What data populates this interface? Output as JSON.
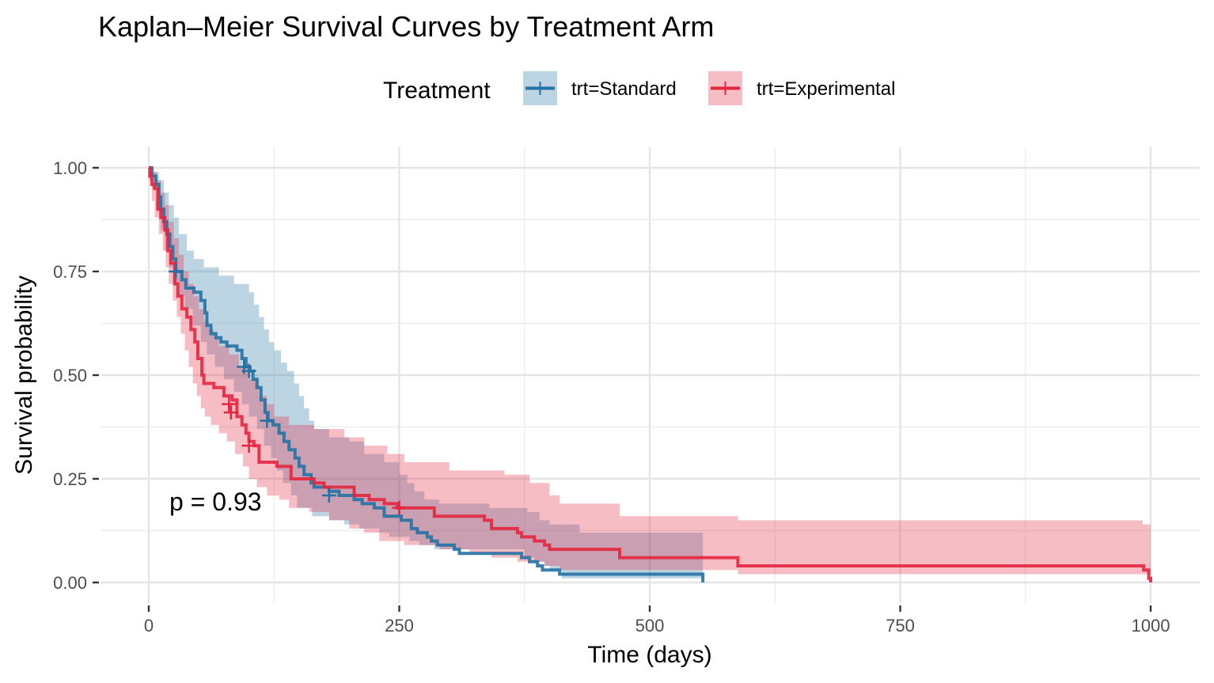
{
  "chart_data": {
    "type": "line",
    "subtype": "kaplan-meier-step",
    "title": "Kaplan–Meier Survival Curves by Treatment Arm",
    "xlabel": "Time (days)",
    "ylabel": "Survival probability",
    "xlim": [
      -20,
      1035
    ],
    "ylim": [
      -0.03,
      1.05
    ],
    "x_ticks": [
      0,
      250,
      500,
      750,
      1000
    ],
    "x_tick_labels": [
      "0",
      "250",
      "500",
      "750",
      "1000"
    ],
    "y_ticks": [
      0,
      0.25,
      0.5,
      0.75,
      1.0
    ],
    "y_tick_labels": [
      "0.00",
      "0.25",
      "0.50",
      "0.75",
      "1.00"
    ],
    "grid": true,
    "legend": {
      "title": "Treatment",
      "position": "top",
      "entries": [
        "trt=Standard",
        "trt=Experimental"
      ]
    },
    "annotation": "p = 0.93",
    "series": [
      {
        "name": "trt=Standard",
        "color": "#2471a3",
        "fill": "#2471a3",
        "steps": [
          [
            0,
            1.0
          ],
          [
            3,
            0.98
          ],
          [
            7,
            0.96
          ],
          [
            10,
            0.93
          ],
          [
            12,
            0.9
          ],
          [
            15,
            0.87
          ],
          [
            18,
            0.84
          ],
          [
            21,
            0.81
          ],
          [
            24,
            0.78
          ],
          [
            27,
            0.75
          ],
          [
            33,
            0.73
          ],
          [
            37,
            0.71
          ],
          [
            45,
            0.7
          ],
          [
            52,
            0.68
          ],
          [
            56,
            0.65
          ],
          [
            58,
            0.62
          ],
          [
            62,
            0.6
          ],
          [
            67,
            0.59
          ],
          [
            72,
            0.58
          ],
          [
            78,
            0.57
          ],
          [
            88,
            0.56
          ],
          [
            93,
            0.54
          ],
          [
            97,
            0.52
          ],
          [
            101,
            0.51
          ],
          [
            104,
            0.49
          ],
          [
            108,
            0.47
          ],
          [
            112,
            0.44
          ],
          [
            116,
            0.41
          ],
          [
            119,
            0.39
          ],
          [
            124,
            0.38
          ],
          [
            130,
            0.36
          ],
          [
            135,
            0.34
          ],
          [
            140,
            0.32
          ],
          [
            146,
            0.3
          ],
          [
            150,
            0.28
          ],
          [
            155,
            0.26
          ],
          [
            162,
            0.24
          ],
          [
            165,
            0.23
          ],
          [
            180,
            0.22
          ],
          [
            190,
            0.21
          ],
          [
            205,
            0.2
          ],
          [
            213,
            0.19
          ],
          [
            225,
            0.18
          ],
          [
            235,
            0.16
          ],
          [
            252,
            0.15
          ],
          [
            262,
            0.13
          ],
          [
            268,
            0.12
          ],
          [
            278,
            0.11
          ],
          [
            282,
            0.1
          ],
          [
            288,
            0.09
          ],
          [
            305,
            0.08
          ],
          [
            310,
            0.07
          ],
          [
            372,
            0.06
          ],
          [
            380,
            0.05
          ],
          [
            388,
            0.04
          ],
          [
            393,
            0.03
          ],
          [
            410,
            0.02
          ],
          [
            553,
            0.0
          ]
        ],
        "ci_upper": [
          [
            0,
            1.0
          ],
          [
            5,
            0.99
          ],
          [
            10,
            0.97
          ],
          [
            15,
            0.94
          ],
          [
            20,
            0.91
          ],
          [
            25,
            0.88
          ],
          [
            30,
            0.84
          ],
          [
            38,
            0.8
          ],
          [
            45,
            0.78
          ],
          [
            55,
            0.76
          ],
          [
            70,
            0.74
          ],
          [
            85,
            0.72
          ],
          [
            100,
            0.7
          ],
          [
            105,
            0.67
          ],
          [
            110,
            0.64
          ],
          [
            115,
            0.61
          ],
          [
            120,
            0.58
          ],
          [
            125,
            0.56
          ],
          [
            132,
            0.53
          ],
          [
            138,
            0.51
          ],
          [
            145,
            0.48
          ],
          [
            150,
            0.45
          ],
          [
            155,
            0.42
          ],
          [
            160,
            0.39
          ],
          [
            165,
            0.37
          ],
          [
            180,
            0.35
          ],
          [
            200,
            0.34
          ],
          [
            215,
            0.31
          ],
          [
            235,
            0.29
          ],
          [
            250,
            0.26
          ],
          [
            258,
            0.24
          ],
          [
            265,
            0.22
          ],
          [
            275,
            0.2
          ],
          [
            290,
            0.19
          ],
          [
            340,
            0.18
          ],
          [
            378,
            0.17
          ],
          [
            390,
            0.15
          ],
          [
            400,
            0.14
          ],
          [
            430,
            0.12
          ],
          [
            553,
            0.12
          ]
        ],
        "ci_lower": [
          [
            0,
            1.0
          ],
          [
            3,
            0.95
          ],
          [
            8,
            0.9
          ],
          [
            12,
            0.85
          ],
          [
            16,
            0.8
          ],
          [
            20,
            0.76
          ],
          [
            24,
            0.72
          ],
          [
            30,
            0.69
          ],
          [
            36,
            0.66
          ],
          [
            44,
            0.62
          ],
          [
            52,
            0.58
          ],
          [
            58,
            0.55
          ],
          [
            66,
            0.52
          ],
          [
            75,
            0.49
          ],
          [
            85,
            0.46
          ],
          [
            93,
            0.43
          ],
          [
            100,
            0.4
          ],
          [
            108,
            0.37
          ],
          [
            115,
            0.33
          ],
          [
            122,
            0.3
          ],
          [
            128,
            0.27
          ],
          [
            134,
            0.24
          ],
          [
            142,
            0.21
          ],
          [
            148,
            0.18
          ],
          [
            163,
            0.16
          ],
          [
            180,
            0.15
          ],
          [
            195,
            0.14
          ],
          [
            210,
            0.13
          ],
          [
            230,
            0.12
          ],
          [
            240,
            0.11
          ],
          [
            260,
            0.1
          ],
          [
            270,
            0.09
          ],
          [
            285,
            0.08
          ],
          [
            375,
            0.06
          ],
          [
            385,
            0.05
          ],
          [
            395,
            0.04
          ],
          [
            400,
            0.03
          ],
          [
            412,
            0.01
          ],
          [
            553,
            0.01
          ]
        ],
        "censor_marks": [
          [
            27,
            0.75
          ],
          [
            95,
            0.52
          ],
          [
            100,
            0.51
          ],
          [
            118,
            0.39
          ],
          [
            180,
            0.21
          ]
        ]
      },
      {
        "name": "trt=Experimental",
        "color": "#e3263f",
        "fill": "#e3263f",
        "steps": [
          [
            0,
            1.0
          ],
          [
            1,
            0.98
          ],
          [
            3,
            0.96
          ],
          [
            6,
            0.95
          ],
          [
            9,
            0.9
          ],
          [
            12,
            0.88
          ],
          [
            16,
            0.85
          ],
          [
            19,
            0.8
          ],
          [
            22,
            0.77
          ],
          [
            26,
            0.72
          ],
          [
            29,
            0.69
          ],
          [
            33,
            0.66
          ],
          [
            38,
            0.64
          ],
          [
            42,
            0.61
          ],
          [
            46,
            0.58
          ],
          [
            49,
            0.54
          ],
          [
            53,
            0.5
          ],
          [
            55,
            0.48
          ],
          [
            65,
            0.47
          ],
          [
            75,
            0.45
          ],
          [
            83,
            0.44
          ],
          [
            88,
            0.4
          ],
          [
            93,
            0.38
          ],
          [
            97,
            0.36
          ],
          [
            100,
            0.34
          ],
          [
            105,
            0.33
          ],
          [
            110,
            0.29
          ],
          [
            128,
            0.28
          ],
          [
            142,
            0.25
          ],
          [
            165,
            0.24
          ],
          [
            175,
            0.23
          ],
          [
            205,
            0.21
          ],
          [
            220,
            0.2
          ],
          [
            235,
            0.19
          ],
          [
            248,
            0.18
          ],
          [
            285,
            0.16
          ],
          [
            335,
            0.15
          ],
          [
            342,
            0.13
          ],
          [
            368,
            0.12
          ],
          [
            372,
            0.11
          ],
          [
            385,
            0.1
          ],
          [
            395,
            0.09
          ],
          [
            400,
            0.08
          ],
          [
            470,
            0.06
          ],
          [
            588,
            0.04
          ],
          [
            993,
            0.03
          ],
          [
            998,
            0.01
          ],
          [
            1000,
            0.0
          ]
        ],
        "ci_upper": [
          [
            0,
            1.0
          ],
          [
            4,
            0.99
          ],
          [
            8,
            0.97
          ],
          [
            12,
            0.94
          ],
          [
            16,
            0.91
          ],
          [
            20,
            0.87
          ],
          [
            25,
            0.83
          ],
          [
            30,
            0.79
          ],
          [
            35,
            0.75
          ],
          [
            40,
            0.72
          ],
          [
            45,
            0.69
          ],
          [
            50,
            0.66
          ],
          [
            55,
            0.63
          ],
          [
            60,
            0.61
          ],
          [
            65,
            0.59
          ],
          [
            70,
            0.57
          ],
          [
            80,
            0.55
          ],
          [
            90,
            0.52
          ],
          [
            100,
            0.49
          ],
          [
            110,
            0.45
          ],
          [
            118,
            0.43
          ],
          [
            125,
            0.4
          ],
          [
            140,
            0.38
          ],
          [
            165,
            0.37
          ],
          [
            195,
            0.35
          ],
          [
            215,
            0.33
          ],
          [
            238,
            0.31
          ],
          [
            255,
            0.29
          ],
          [
            300,
            0.27
          ],
          [
            355,
            0.26
          ],
          [
            380,
            0.24
          ],
          [
            400,
            0.21
          ],
          [
            410,
            0.19
          ],
          [
            460,
            0.19
          ],
          [
            470,
            0.16
          ],
          [
            588,
            0.15
          ],
          [
            992,
            0.14
          ],
          [
            1000,
            0.14
          ]
        ],
        "ci_lower": [
          [
            0,
            0.97
          ],
          [
            3,
            0.92
          ],
          [
            6,
            0.88
          ],
          [
            10,
            0.84
          ],
          [
            14,
            0.8
          ],
          [
            17,
            0.76
          ],
          [
            20,
            0.72
          ],
          [
            24,
            0.68
          ],
          [
            28,
            0.64
          ],
          [
            32,
            0.6
          ],
          [
            36,
            0.56
          ],
          [
            40,
            0.52
          ],
          [
            44,
            0.48
          ],
          [
            48,
            0.45
          ],
          [
            52,
            0.42
          ],
          [
            56,
            0.4
          ],
          [
            62,
            0.38
          ],
          [
            70,
            0.36
          ],
          [
            78,
            0.34
          ],
          [
            86,
            0.31
          ],
          [
            94,
            0.28
          ],
          [
            100,
            0.25
          ],
          [
            108,
            0.23
          ],
          [
            118,
            0.21
          ],
          [
            130,
            0.2
          ],
          [
            140,
            0.18
          ],
          [
            160,
            0.17
          ],
          [
            180,
            0.15
          ],
          [
            200,
            0.13
          ],
          [
            215,
            0.12
          ],
          [
            230,
            0.1
          ],
          [
            255,
            0.09
          ],
          [
            290,
            0.08
          ],
          [
            320,
            0.07
          ],
          [
            342,
            0.06
          ],
          [
            368,
            0.05
          ],
          [
            395,
            0.04
          ],
          [
            410,
            0.03
          ],
          [
            560,
            0.03
          ],
          [
            588,
            0.02
          ],
          [
            992,
            0.02
          ],
          [
            1000,
            0.0
          ]
        ],
        "censor_marks": [
          [
            80,
            0.43
          ],
          [
            82,
            0.41
          ],
          [
            100,
            0.33
          ],
          [
            250,
            0.18
          ]
        ]
      }
    ]
  }
}
